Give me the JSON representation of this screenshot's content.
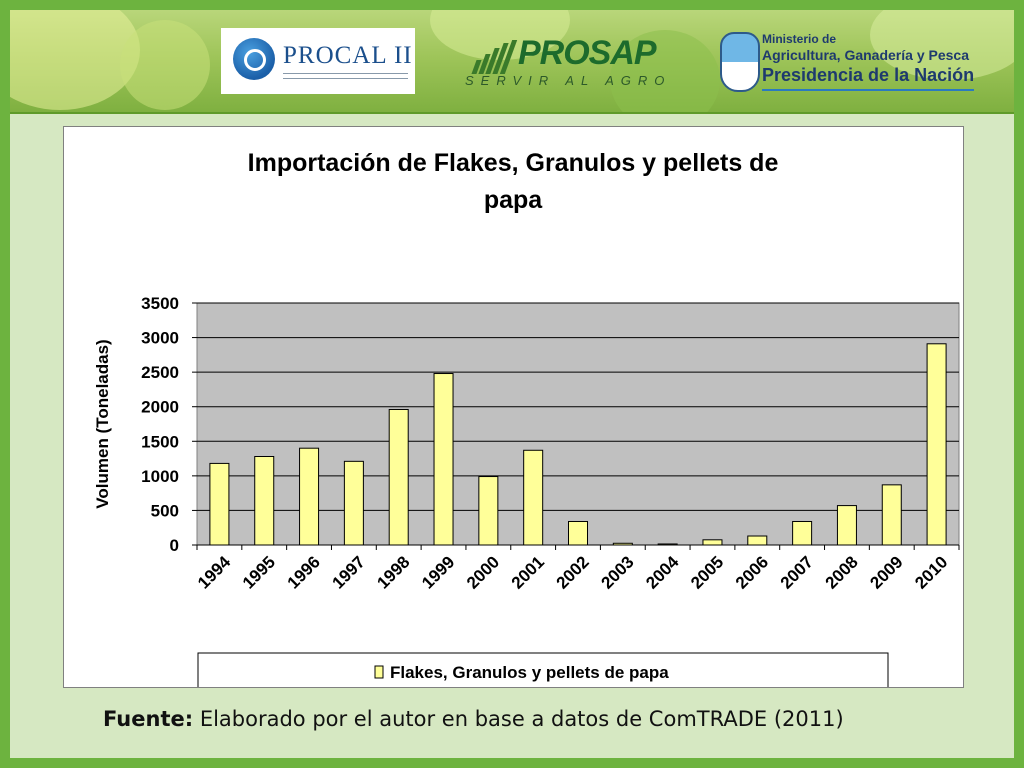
{
  "header": {
    "procal_logo_text": "PROCAL II",
    "prosap_name": "PROSAP",
    "prosap_tagline": "SERVIR AL AGRO",
    "ministry_line1": "Ministerio de",
    "ministry_line2": "Agricultura, Ganadería y Pesca",
    "ministry_line3": "Presidencia de la Nación"
  },
  "footer": {
    "source_label": "Fuente:",
    "source_text": "Elaborado por el autor en base a datos de ComTRADE (2011)"
  },
  "colors": {
    "frame_green": "#6db33f",
    "slide_background": "#d6e8c2",
    "plot_area": "#c0c0c0",
    "bar_fill": "#ffff99",
    "bar_stroke": "#000000"
  },
  "chart_data": {
    "type": "bar",
    "title": "Importación de Flakes, Granulos y pellets de papa",
    "title_lines": [
      "Importación de Flakes, Granulos y pellets de",
      "papa"
    ],
    "xlabel": "",
    "ylabel": "Volumen (Toneladas)",
    "ylim": [
      0,
      3500
    ],
    "yticks": [
      0,
      500,
      1000,
      1500,
      2000,
      2500,
      3000,
      3500
    ],
    "grid": true,
    "legend_position": "bottom",
    "categories": [
      "1994",
      "1995",
      "1996",
      "1997",
      "1998",
      "1999",
      "2000",
      "2001",
      "2002",
      "2003",
      "2004",
      "2005",
      "2006",
      "2007",
      "2008",
      "2009",
      "2010"
    ],
    "series": [
      {
        "name": "Flakes, Granulos y pellets de papa",
        "values": [
          1180,
          1280,
          1400,
          1210,
          1960,
          2480,
          990,
          1370,
          340,
          25,
          15,
          75,
          130,
          340,
          570,
          870,
          2910
        ]
      }
    ]
  }
}
